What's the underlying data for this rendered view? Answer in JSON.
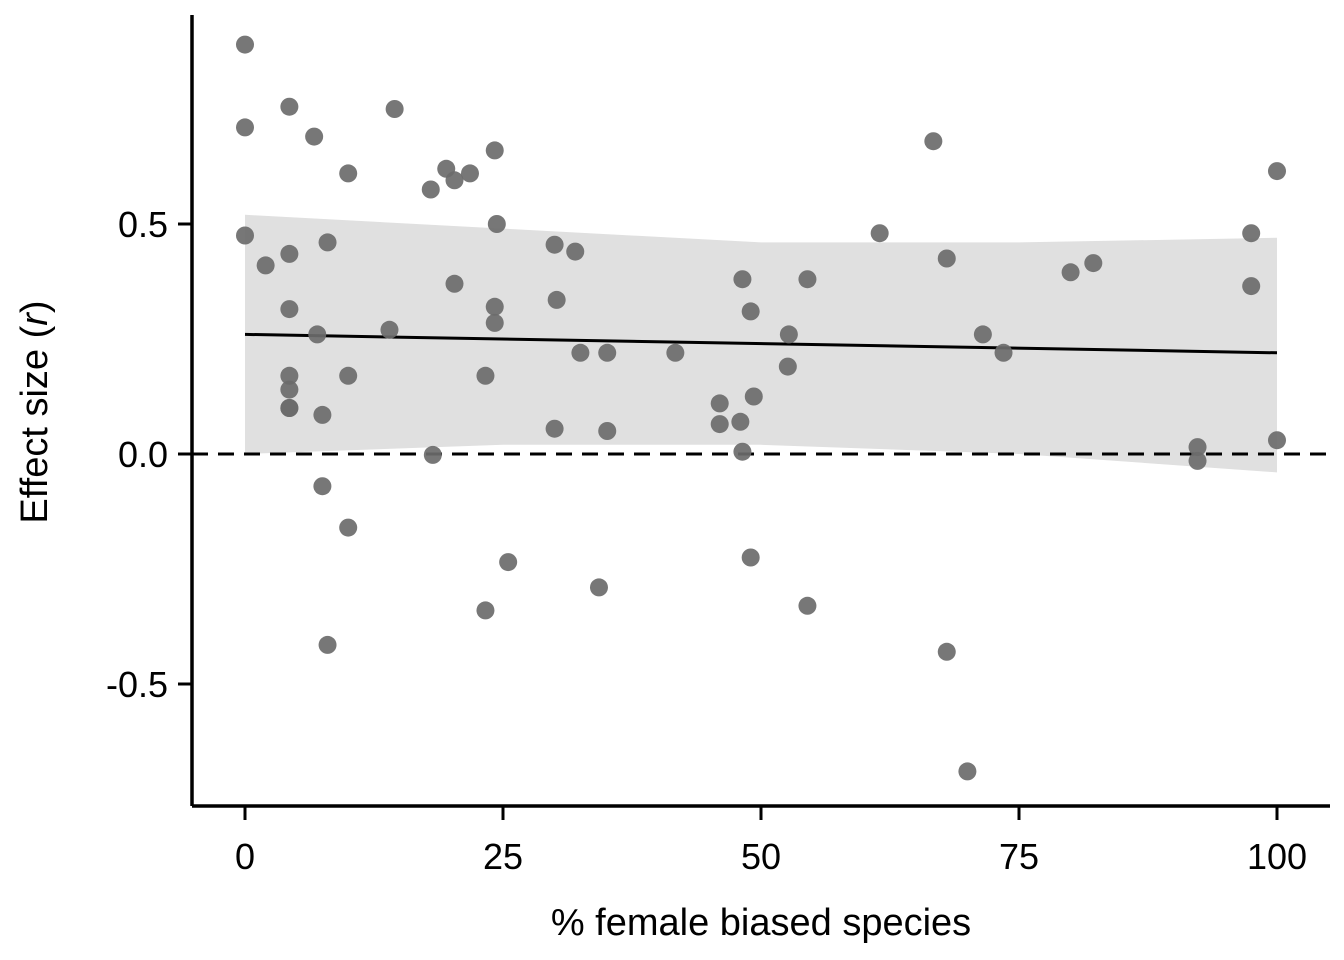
{
  "chart_data": {
    "type": "scatter",
    "title": "",
    "xlabel": "% female biased species",
    "ylabel_prefix": "Effect size (",
    "ylabel_var": "r",
    "ylabel_suffix": ")",
    "xlim": [
      -5,
      105
    ],
    "ylim": [
      -0.765,
      0.955
    ],
    "x_ticks": [
      0,
      25,
      50,
      75,
      100
    ],
    "x_tick_labels": [
      "0",
      "25",
      "50",
      "75",
      "100"
    ],
    "y_ticks": [
      0.5,
      0.0,
      -0.5
    ],
    "y_tick_labels": [
      "0.5",
      "0.0",
      "-0.5"
    ],
    "reference_line": {
      "y": 0.0,
      "style": "dashed"
    },
    "regression": {
      "x": [
        0,
        100
      ],
      "y": [
        0.26,
        0.22
      ]
    },
    "confidence_band": {
      "x": [
        0,
        25,
        50,
        75,
        100
      ],
      "upper": [
        0.52,
        0.49,
        0.46,
        0.46,
        0.47
      ],
      "lower": [
        0.0,
        0.02,
        0.02,
        0.0,
        -0.04
      ]
    },
    "colors": {
      "points": "#6b6b6b",
      "band": "#e0e0e0",
      "line": "#000000"
    },
    "points": [
      {
        "x": 0,
        "y": 0.89
      },
      {
        "x": 0,
        "y": 0.71
      },
      {
        "x": 0,
        "y": 0.475
      },
      {
        "x": 2,
        "y": 0.41
      },
      {
        "x": 4.3,
        "y": 0.755
      },
      {
        "x": 4.3,
        "y": 0.435
      },
      {
        "x": 4.3,
        "y": 0.315
      },
      {
        "x": 4.3,
        "y": 0.17
      },
      {
        "x": 4.3,
        "y": 0.14
      },
      {
        "x": 4.3,
        "y": 0.1
      },
      {
        "x": 4.3,
        "y": 0.1
      },
      {
        "x": 6.7,
        "y": 0.69
      },
      {
        "x": 7,
        "y": 0.26
      },
      {
        "x": 7.5,
        "y": 0.085
      },
      {
        "x": 7.5,
        "y": -0.07
      },
      {
        "x": 8,
        "y": 0.46
      },
      {
        "x": 8,
        "y": -0.415
      },
      {
        "x": 10,
        "y": 0.61
      },
      {
        "x": 10,
        "y": 0.17
      },
      {
        "x": 10,
        "y": -0.16
      },
      {
        "x": 14,
        "y": 0.27
      },
      {
        "x": 14.5,
        "y": 0.75
      },
      {
        "x": 18,
        "y": 0.575
      },
      {
        "x": 18.2,
        "y": -0.002
      },
      {
        "x": 19.5,
        "y": 0.62
      },
      {
        "x": 20.3,
        "y": 0.595
      },
      {
        "x": 20.3,
        "y": 0.37
      },
      {
        "x": 21.8,
        "y": 0.61
      },
      {
        "x": 23.3,
        "y": 0.17
      },
      {
        "x": 23.3,
        "y": -0.34
      },
      {
        "x": 24.2,
        "y": 0.66
      },
      {
        "x": 24.2,
        "y": 0.32
      },
      {
        "x": 24.2,
        "y": 0.285
      },
      {
        "x": 24.4,
        "y": 0.5
      },
      {
        "x": 25.5,
        "y": -0.235
      },
      {
        "x": 30,
        "y": 0.455
      },
      {
        "x": 30.2,
        "y": 0.335
      },
      {
        "x": 30,
        "y": 0.055
      },
      {
        "x": 32,
        "y": 0.44
      },
      {
        "x": 32.5,
        "y": 0.22
      },
      {
        "x": 34.3,
        "y": -0.29
      },
      {
        "x": 35.1,
        "y": 0.22
      },
      {
        "x": 35.1,
        "y": 0.05
      },
      {
        "x": 41.7,
        "y": 0.22
      },
      {
        "x": 46,
        "y": 0.11
      },
      {
        "x": 46,
        "y": 0.065
      },
      {
        "x": 48.2,
        "y": 0.38
      },
      {
        "x": 48,
        "y": 0.07
      },
      {
        "x": 48.2,
        "y": 0.005
      },
      {
        "x": 49,
        "y": 0.31
      },
      {
        "x": 49.3,
        "y": 0.125
      },
      {
        "x": 49,
        "y": -0.225
      },
      {
        "x": 52.7,
        "y": 0.26
      },
      {
        "x": 52.6,
        "y": 0.19
      },
      {
        "x": 54.5,
        "y": 0.38
      },
      {
        "x": 54.5,
        "y": -0.33
      },
      {
        "x": 61.5,
        "y": 0.48
      },
      {
        "x": 66.7,
        "y": 0.68
      },
      {
        "x": 68,
        "y": 0.425
      },
      {
        "x": 68,
        "y": -0.43
      },
      {
        "x": 70,
        "y": -0.69
      },
      {
        "x": 71.5,
        "y": 0.26
      },
      {
        "x": 73.5,
        "y": 0.22
      },
      {
        "x": 80,
        "y": 0.395
      },
      {
        "x": 82.2,
        "y": 0.415
      },
      {
        "x": 92.3,
        "y": 0.015
      },
      {
        "x": 92.3,
        "y": -0.015
      },
      {
        "x": 97.5,
        "y": 0.48
      },
      {
        "x": 97.5,
        "y": 0.365
      },
      {
        "x": 100,
        "y": 0.615
      },
      {
        "x": 100,
        "y": 0.03
      }
    ]
  }
}
